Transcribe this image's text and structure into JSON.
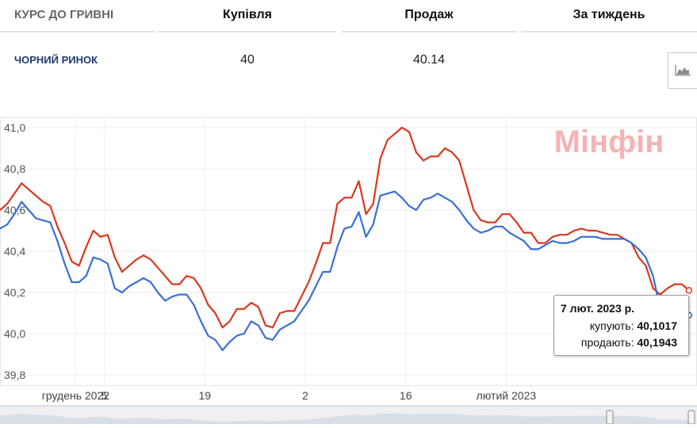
{
  "table": {
    "header": {
      "label": "КУРС ДО ГРИВНІ",
      "buy": "Купівля",
      "sell": "Продаж",
      "week": "За тиждень"
    },
    "row": {
      "label": "ЧОРНИЙ РИНОК",
      "buy": "40",
      "sell": "40.14"
    },
    "chart_button_icon": "area-chart-icon"
  },
  "watermark": "Мінфін",
  "tooltip": {
    "date": "7 лют. 2023 р.",
    "buy_label": "купують:",
    "buy_value": "40,1017",
    "sell_label": "продають:",
    "sell_value": "40,1943"
  },
  "colors": {
    "buy_line": "#3a6fd8",
    "sell_line": "#d9381e",
    "watermark": "#f4a6a6"
  },
  "chart_data": {
    "type": "line",
    "title": "",
    "xlabel": "",
    "ylabel": "",
    "ylim": [
      39.75,
      41.05
    ],
    "y_ticks": [
      "41,0",
      "40,8",
      "40,6",
      "40,4",
      "40,2",
      "40,0",
      "39,8"
    ],
    "x_ticks": [
      {
        "label": "грудень 2022",
        "index": 8
      },
      {
        "label": "5",
        "index": 12
      },
      {
        "label": "19",
        "index": 26
      },
      {
        "label": "2",
        "index": 40
      },
      {
        "label": "16",
        "index": 54
      },
      {
        "label": "лютий 2023",
        "index": 68
      }
    ],
    "grid": true,
    "legend": "none",
    "series": [
      {
        "key": "sell",
        "color": "#d9381e",
        "values": [
          40.6,
          40.63,
          40.68,
          40.73,
          40.7,
          40.67,
          40.64,
          40.62,
          40.52,
          40.44,
          40.35,
          40.33,
          40.42,
          40.5,
          40.47,
          40.48,
          40.37,
          40.3,
          40.33,
          40.36,
          40.38,
          40.36,
          40.32,
          40.28,
          40.24,
          40.24,
          40.28,
          40.27,
          40.22,
          40.14,
          40.1,
          40.03,
          40.06,
          40.12,
          40.12,
          40.15,
          40.13,
          40.04,
          40.03,
          40.1,
          40.11,
          40.11,
          40.18,
          40.25,
          40.34,
          40.44,
          40.44,
          40.63,
          40.66,
          40.66,
          40.74,
          40.58,
          40.63,
          40.85,
          40.94,
          40.97,
          41.0,
          40.98,
          40.88,
          40.84,
          40.86,
          40.86,
          40.9,
          40.88,
          40.84,
          40.72,
          40.6,
          40.55,
          40.54,
          40.54,
          40.58,
          40.58,
          40.54,
          40.49,
          40.49,
          40.44,
          40.44,
          40.47,
          40.48,
          40.48,
          40.5,
          40.51,
          40.5,
          40.5,
          40.49,
          40.48,
          40.48,
          40.46,
          40.44,
          40.37,
          40.33,
          40.22,
          40.19,
          40.22,
          40.24,
          40.24,
          40.21
        ]
      },
      {
        "key": "buy",
        "color": "#3a6fd8",
        "values": [
          40.51,
          40.53,
          40.58,
          40.64,
          40.6,
          40.56,
          40.55,
          40.54,
          40.45,
          40.34,
          40.25,
          40.25,
          40.28,
          40.37,
          40.36,
          40.34,
          40.22,
          40.2,
          40.23,
          40.25,
          40.27,
          40.25,
          40.2,
          40.16,
          40.18,
          40.19,
          40.19,
          40.14,
          40.06,
          39.99,
          39.97,
          39.92,
          39.96,
          39.99,
          40.0,
          40.06,
          40.04,
          39.98,
          39.97,
          40.02,
          40.04,
          40.06,
          40.11,
          40.16,
          40.23,
          40.3,
          40.3,
          40.42,
          40.51,
          40.52,
          40.59,
          40.47,
          40.53,
          40.67,
          40.68,
          40.69,
          40.66,
          40.62,
          40.6,
          40.65,
          40.66,
          40.68,
          40.66,
          40.64,
          40.6,
          40.55,
          40.51,
          40.49,
          40.5,
          40.52,
          40.52,
          40.49,
          40.47,
          40.45,
          40.41,
          40.41,
          40.43,
          40.45,
          40.44,
          40.44,
          40.45,
          40.47,
          40.47,
          40.47,
          40.46,
          40.46,
          40.46,
          40.46,
          40.44,
          40.41,
          40.37,
          40.28,
          40.12,
          40.1,
          40.1,
          40.1,
          40.09
        ]
      }
    ],
    "navigator": {
      "labels": []
    }
  }
}
